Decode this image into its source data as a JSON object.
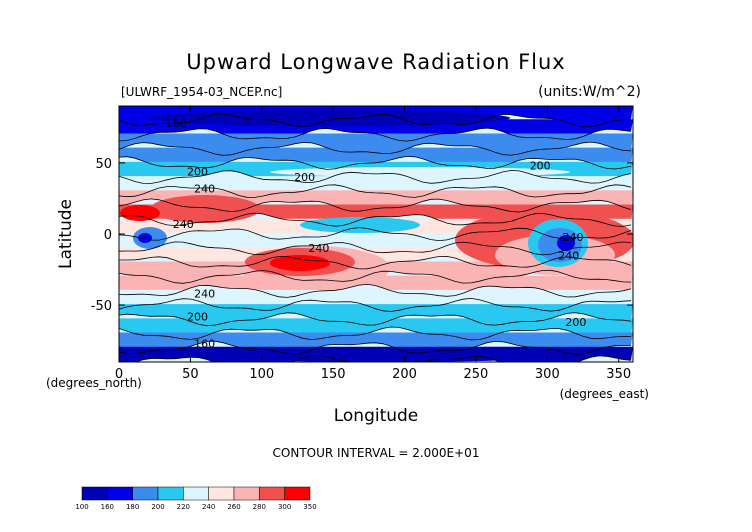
{
  "chart_data": {
    "type": "heatmap",
    "title": "Upward Longwave Radiation Flux",
    "subtitle_left": "[ULWRF_1954-03_NCEP.nc]",
    "subtitle_right": "(units:W/m^2)",
    "xlabel": "Longitude",
    "ylabel": "Latitude",
    "x_unit_label": "(degrees_east)",
    "y_unit_label": "(degrees_north)",
    "xlim": [
      0,
      360
    ],
    "ylim": [
      -90,
      90
    ],
    "x_ticks": [
      0,
      50,
      100,
      150,
      200,
      250,
      300,
      350
    ],
    "y_ticks": [
      -50,
      0,
      50
    ],
    "footer": "CONTOUR INTERVAL = 2.000E+01",
    "contour_labels": [
      {
        "text": "160",
        "lon": 40,
        "lat": 78
      },
      {
        "text": "200",
        "lon": 55,
        "lat": 44
      },
      {
        "text": "240",
        "lon": 60,
        "lat": 32
      },
      {
        "text": "240",
        "lon": 45,
        "lat": 7
      },
      {
        "text": "200",
        "lon": 130,
        "lat": 40
      },
      {
        "text": "240",
        "lon": 140,
        "lat": -10
      },
      {
        "text": "240",
        "lon": 60,
        "lat": -42
      },
      {
        "text": "200",
        "lon": 55,
        "lat": -58
      },
      {
        "text": "160",
        "lon": 60,
        "lat": -77
      },
      {
        "text": "200",
        "lon": 295,
        "lat": 48
      },
      {
        "text": "240",
        "lon": 318,
        "lat": -2
      },
      {
        "text": "240",
        "lon": 315,
        "lat": -15
      },
      {
        "text": "200",
        "lon": 320,
        "lat": -62
      }
    ],
    "colorbar": {
      "boundaries": [
        "100",
        "160",
        "180",
        "200",
        "220",
        "240",
        "260",
        "280",
        "300",
        "350"
      ],
      "colors": [
        "#0000b4",
        "#0000e6",
        "#3c8cf0",
        "#28c8f0",
        "#dcf5ff",
        "#ffe6e1",
        "#fab4b4",
        "#f05050",
        "#ff0000"
      ]
    },
    "bands": [
      {
        "lat": 90,
        "ul": 165
      },
      {
        "lat": 80,
        "ul": 170
      },
      {
        "lat": 70,
        "ul": 180
      },
      {
        "lat": 60,
        "ul": 195
      },
      {
        "lat": 50,
        "ul": 205
      },
      {
        "lat": 40,
        "ul": 222
      },
      {
        "lat": 30,
        "ul": 260
      },
      {
        "lat": 20,
        "ul": 282
      },
      {
        "lat": 10,
        "ul": 255
      },
      {
        "lat": 0,
        "ul": 238
      },
      {
        "lat": -10,
        "ul": 246
      },
      {
        "lat": -20,
        "ul": 268
      },
      {
        "lat": -30,
        "ul": 262
      },
      {
        "lat": -40,
        "ul": 222
      },
      {
        "lat": -50,
        "ul": 205
      },
      {
        "lat": -60,
        "ul": 200
      },
      {
        "lat": -70,
        "ul": 182
      },
      {
        "lat": -80,
        "ul": 158
      },
      {
        "lat": -90,
        "ul": 150
      }
    ]
  }
}
